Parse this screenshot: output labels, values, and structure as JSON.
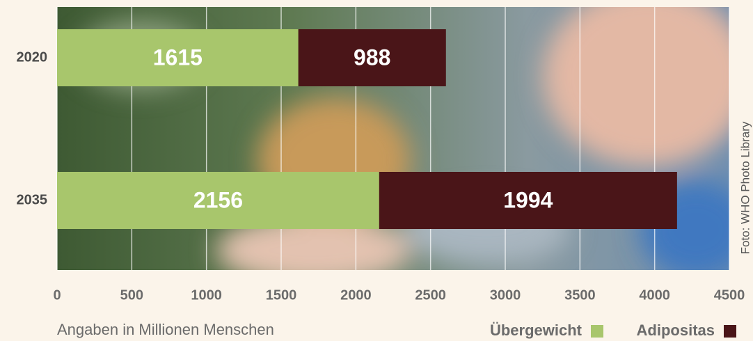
{
  "chart_data": {
    "type": "stacked-bar-horizontal",
    "categories": [
      "2020",
      "2035"
    ],
    "series": [
      {
        "name": "Übergewicht",
        "color": "#a8c66c",
        "values": [
          1615,
          2156
        ]
      },
      {
        "name": "Adipositas",
        "color": "#4a1518",
        "values": [
          988,
          1994
        ]
      }
    ],
    "xlim": [
      0,
      4500
    ],
    "xticks": [
      0,
      500,
      1000,
      1500,
      2000,
      2500,
      3000,
      3500,
      4000,
      4500
    ],
    "grid": true,
    "legend": "bottom-right",
    "note": "Angaben in Millionen Menschen",
    "credit": "Foto: WHO Photo Library"
  }
}
